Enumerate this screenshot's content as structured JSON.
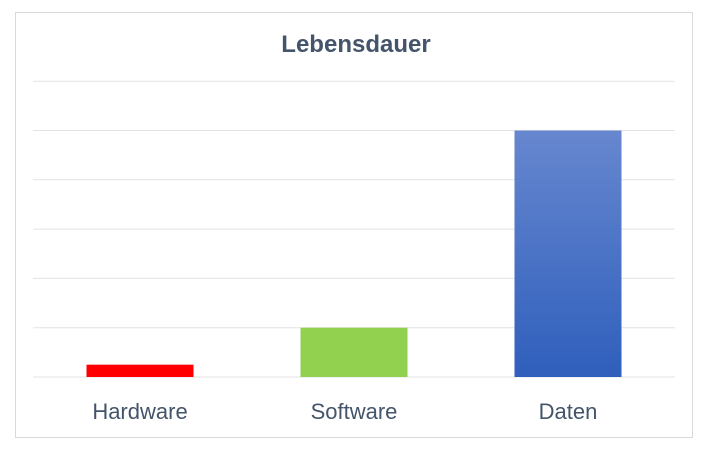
{
  "chart_data": {
    "type": "bar",
    "title": "Lebensdauer",
    "xlabel": "",
    "ylabel": "",
    "categories": [
      "Hardware",
      "Software",
      "Daten"
    ],
    "values": [
      0.25,
      1,
      5
    ],
    "ylim": [
      0,
      6
    ],
    "grid": true,
    "colors": {
      "Hardware": "#ff0000",
      "Software": "#92d050",
      "Daten_top": "#6787cf",
      "Daten_bottom": "#2f5fbc"
    },
    "gridline_color": "#e3e3e3",
    "text_color": "#44546a"
  }
}
